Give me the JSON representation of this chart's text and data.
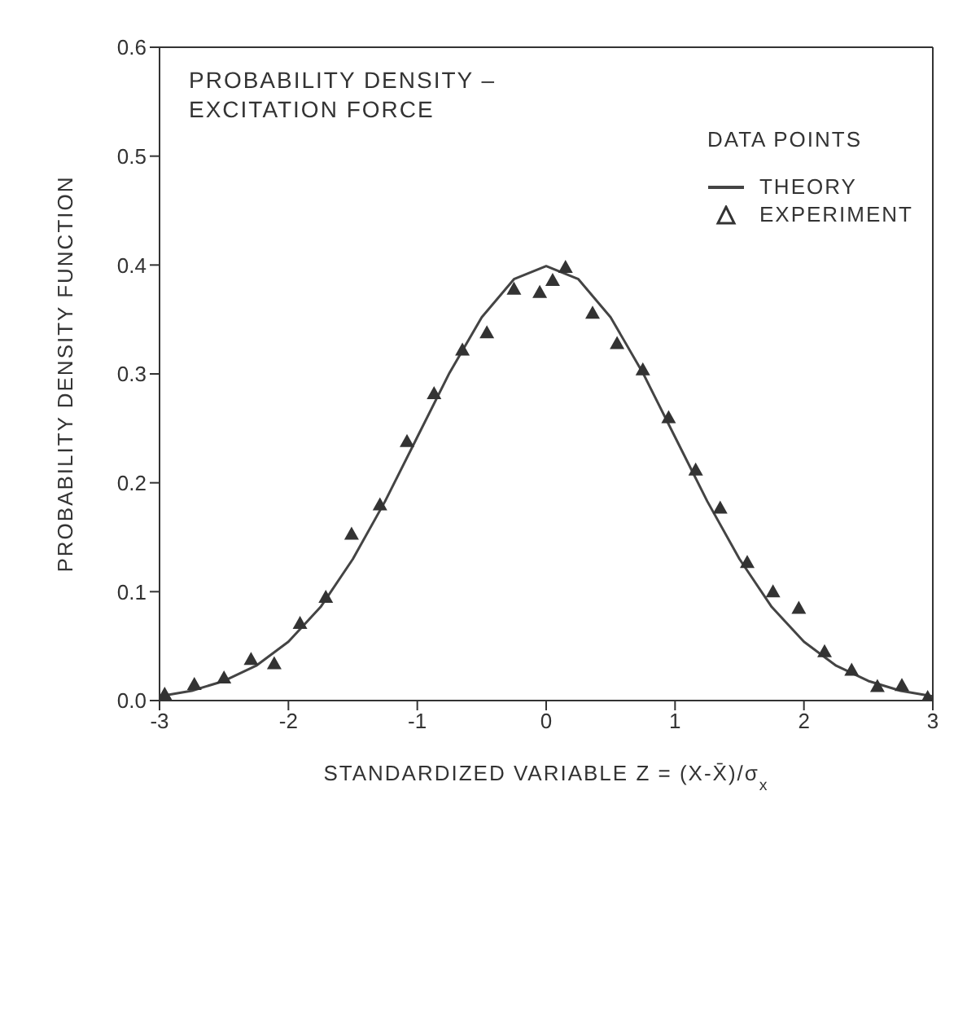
{
  "chart_data": {
    "type": "line",
    "title": "PROBABILITY DENSITY – EXCITATION FORCE",
    "xlabel": "STANDARDIZED VARIABLE Z = (X-X̄)/σ$_{x}$",
    "ylabel": "PROBABILITY DENSITY FUNCTION",
    "legend_title": "DATA POINTS",
    "legend": "top right",
    "xlim": [
      -3,
      3
    ],
    "xticks": [
      -3,
      -2,
      -1,
      0,
      1,
      2,
      3
    ],
    "ylim": [
      0,
      0.6
    ],
    "yticks": [
      {
        "value": 0,
        "label": "0.0"
      },
      0.1,
      0.2,
      0.3,
      0.4,
      0.5,
      0.6
    ],
    "grid": false,
    "series": [
      {
        "name": "THEORY",
        "marker": "none",
        "line_style": "solid",
        "color": "#444444",
        "x": [
          -3,
          -2.75,
          -2.5,
          -2.25,
          -2,
          -1.75,
          -1.5,
          -1.25,
          -1,
          -0.75,
          -0.5,
          -0.25,
          0,
          0.25,
          0.5,
          0.75,
          1,
          1.25,
          1.5,
          1.75,
          2,
          2.25,
          2.5,
          2.75,
          3
        ],
        "values": [
          0.004,
          0.009,
          0.018,
          0.032,
          0.054,
          0.086,
          0.13,
          0.183,
          0.242,
          0.301,
          0.352,
          0.387,
          0.399,
          0.387,
          0.352,
          0.301,
          0.242,
          0.183,
          0.13,
          0.086,
          0.054,
          0.032,
          0.018,
          0.009,
          0.004
        ]
      },
      {
        "name": "EXPERIMENT",
        "type": "scatter",
        "marker": "triangle",
        "color": "#333333",
        "x": [
          -2.96,
          -2.73,
          -2.5,
          -2.29,
          -2.11,
          -1.91,
          -1.71,
          -1.51,
          -1.29,
          -1.08,
          -0.87,
          -0.65,
          -0.46,
          -0.25,
          -0.05,
          0.05,
          0.15,
          0.36,
          0.55,
          0.75,
          0.95,
          1.16,
          1.35,
          1.56,
          1.76,
          1.96,
          2.16,
          2.37,
          2.57,
          2.76,
          2.96
        ],
        "values": [
          0.006,
          0.015,
          0.021,
          0.038,
          0.034,
          0.071,
          0.095,
          0.153,
          0.18,
          0.238,
          0.282,
          0.322,
          0.338,
          0.378,
          0.375,
          0.386,
          0.398,
          0.356,
          0.328,
          0.304,
          0.26,
          0.212,
          0.177,
          0.127,
          0.1,
          0.085,
          0.045,
          0.028,
          0.013,
          0.014,
          0.003
        ]
      }
    ]
  }
}
